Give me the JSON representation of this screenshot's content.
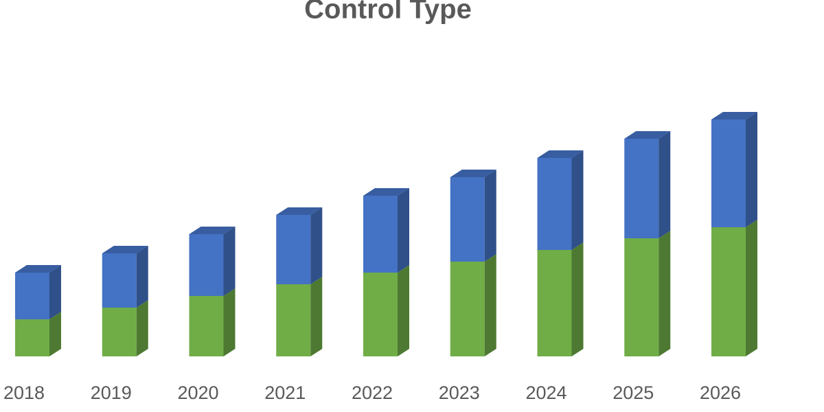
{
  "chart_data": {
    "type": "bar3d_stacked",
    "title": "Control Type",
    "categories": [
      "2018",
      "2019",
      "2020",
      "2021",
      "2022",
      "2023",
      "2024",
      "2025",
      "2026"
    ],
    "series": [
      {
        "color": "#70ad47",
        "values": [
          54,
          71,
          88,
          105,
          122,
          138,
          155,
          172,
          188
        ]
      },
      {
        "color": "#4472c4",
        "values": [
          68,
          79,
          90,
          101,
          112,
          123,
          134,
          145,
          157
        ]
      }
    ]
  }
}
